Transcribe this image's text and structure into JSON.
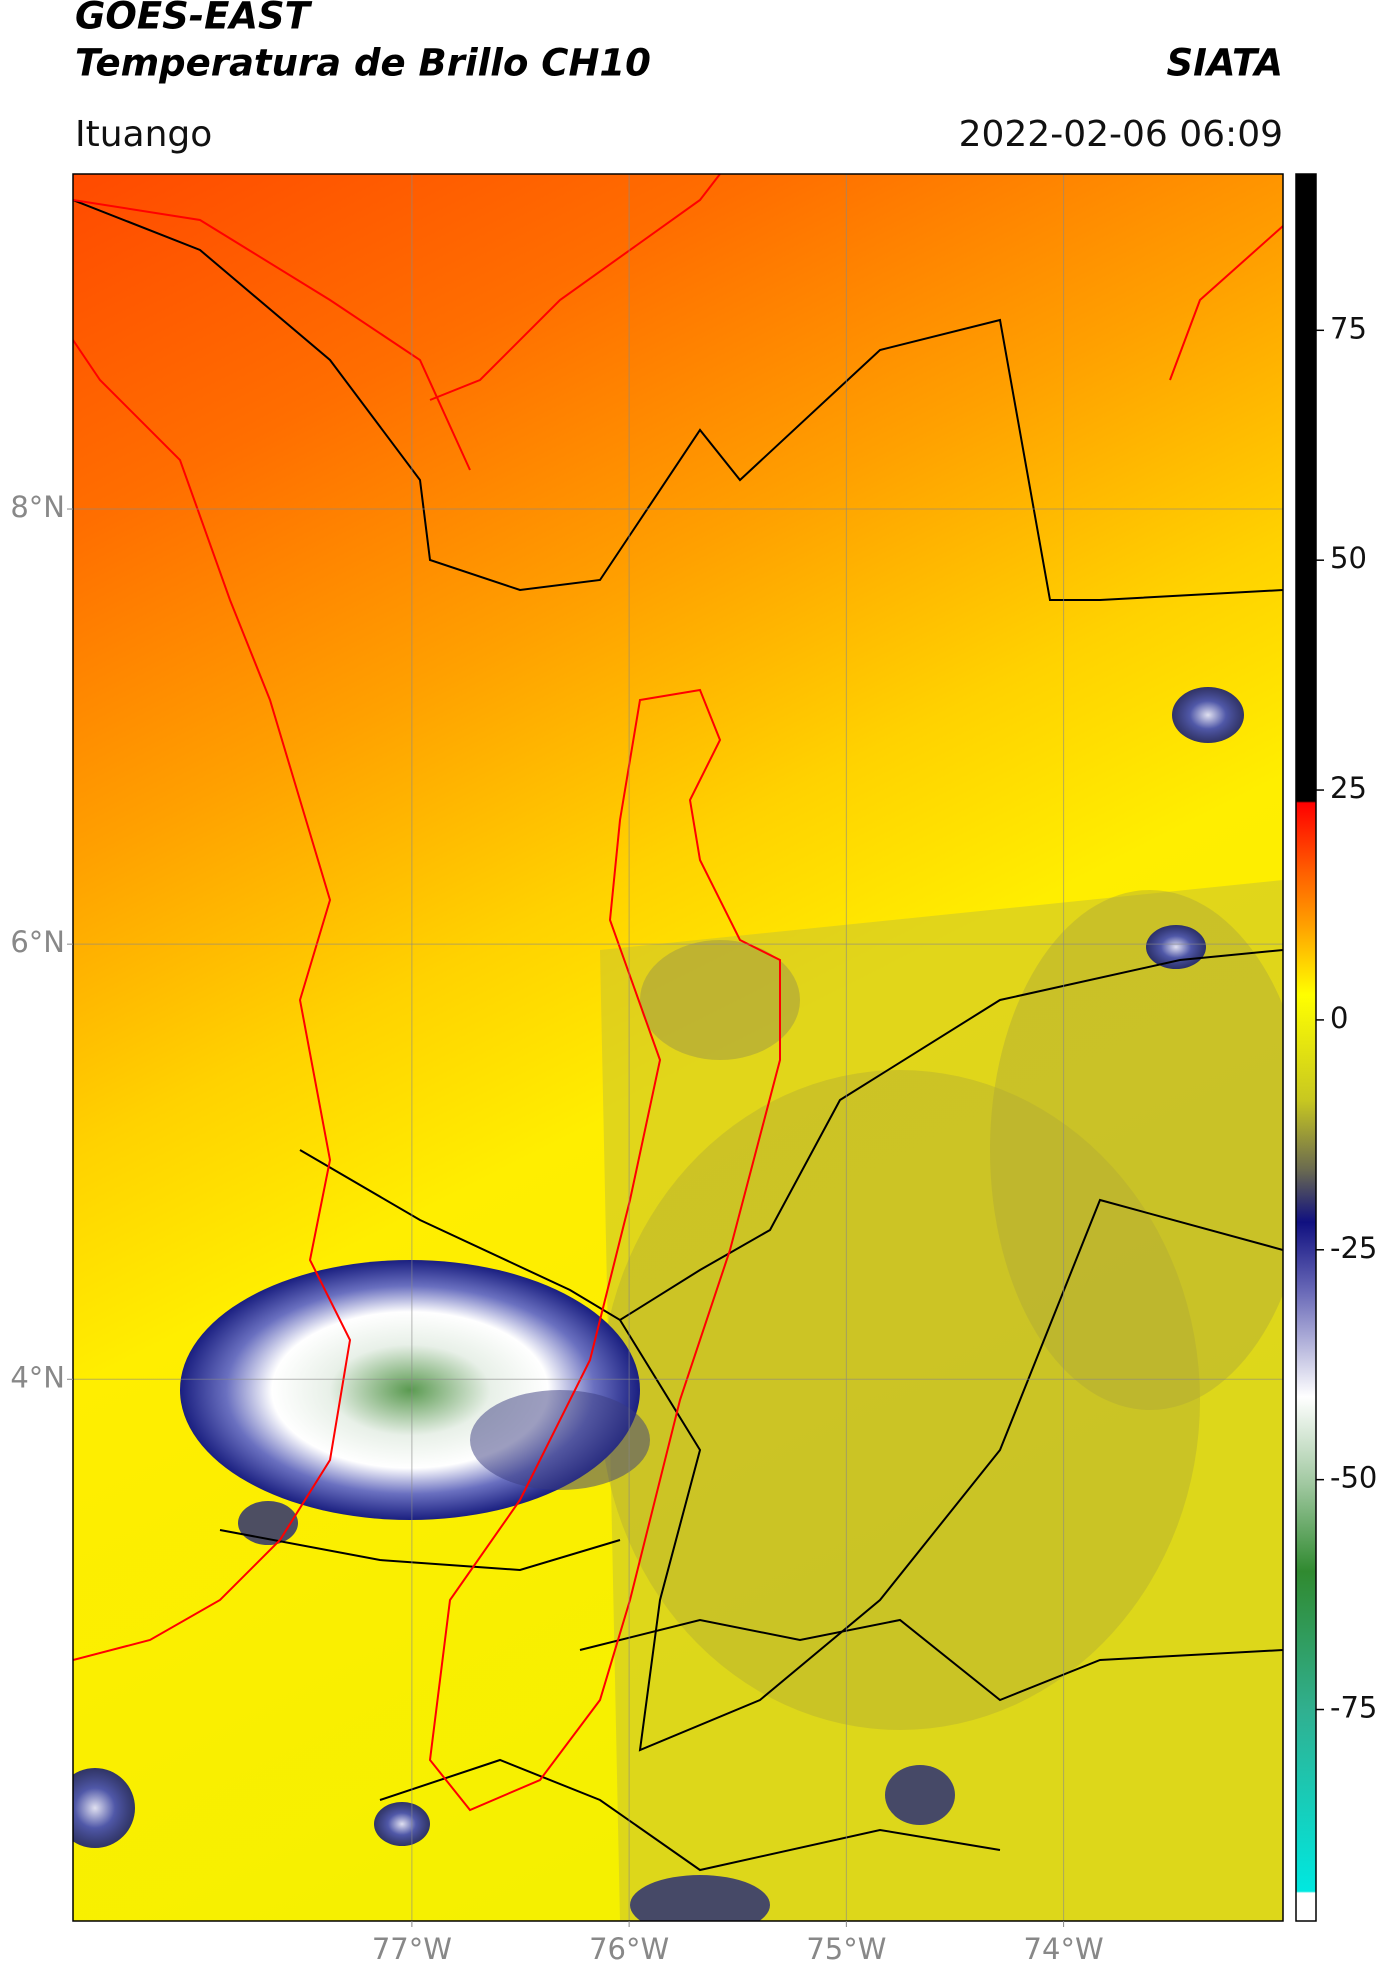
{
  "header": {
    "title": "GOES-EAST",
    "subtitle": "Temperatura de Brillo CH10",
    "brand": "SIATA",
    "location": "Ituango",
    "datetime": "2022-02-06 06:09"
  },
  "map": {
    "lon_range": [
      -78.56,
      -72.99
    ],
    "lat_range": [
      1.51,
      9.54
    ],
    "lon_ticks": [
      {
        "value": -77,
        "label": "77°W"
      },
      {
        "value": -76,
        "label": "76°W"
      },
      {
        "value": -75,
        "label": "75°W"
      },
      {
        "value": -74,
        "label": "74°W"
      }
    ],
    "lat_ticks": [
      {
        "value": 8,
        "label": "8°N"
      },
      {
        "value": 6,
        "label": "6°N"
      },
      {
        "value": 4,
        "label": "4°N"
      }
    ],
    "grid": true
  },
  "colorbar": {
    "lim": [
      -98,
      92
    ],
    "ticks": [
      75,
      50,
      25,
      0,
      -25,
      -50,
      -75
    ]
  }
}
